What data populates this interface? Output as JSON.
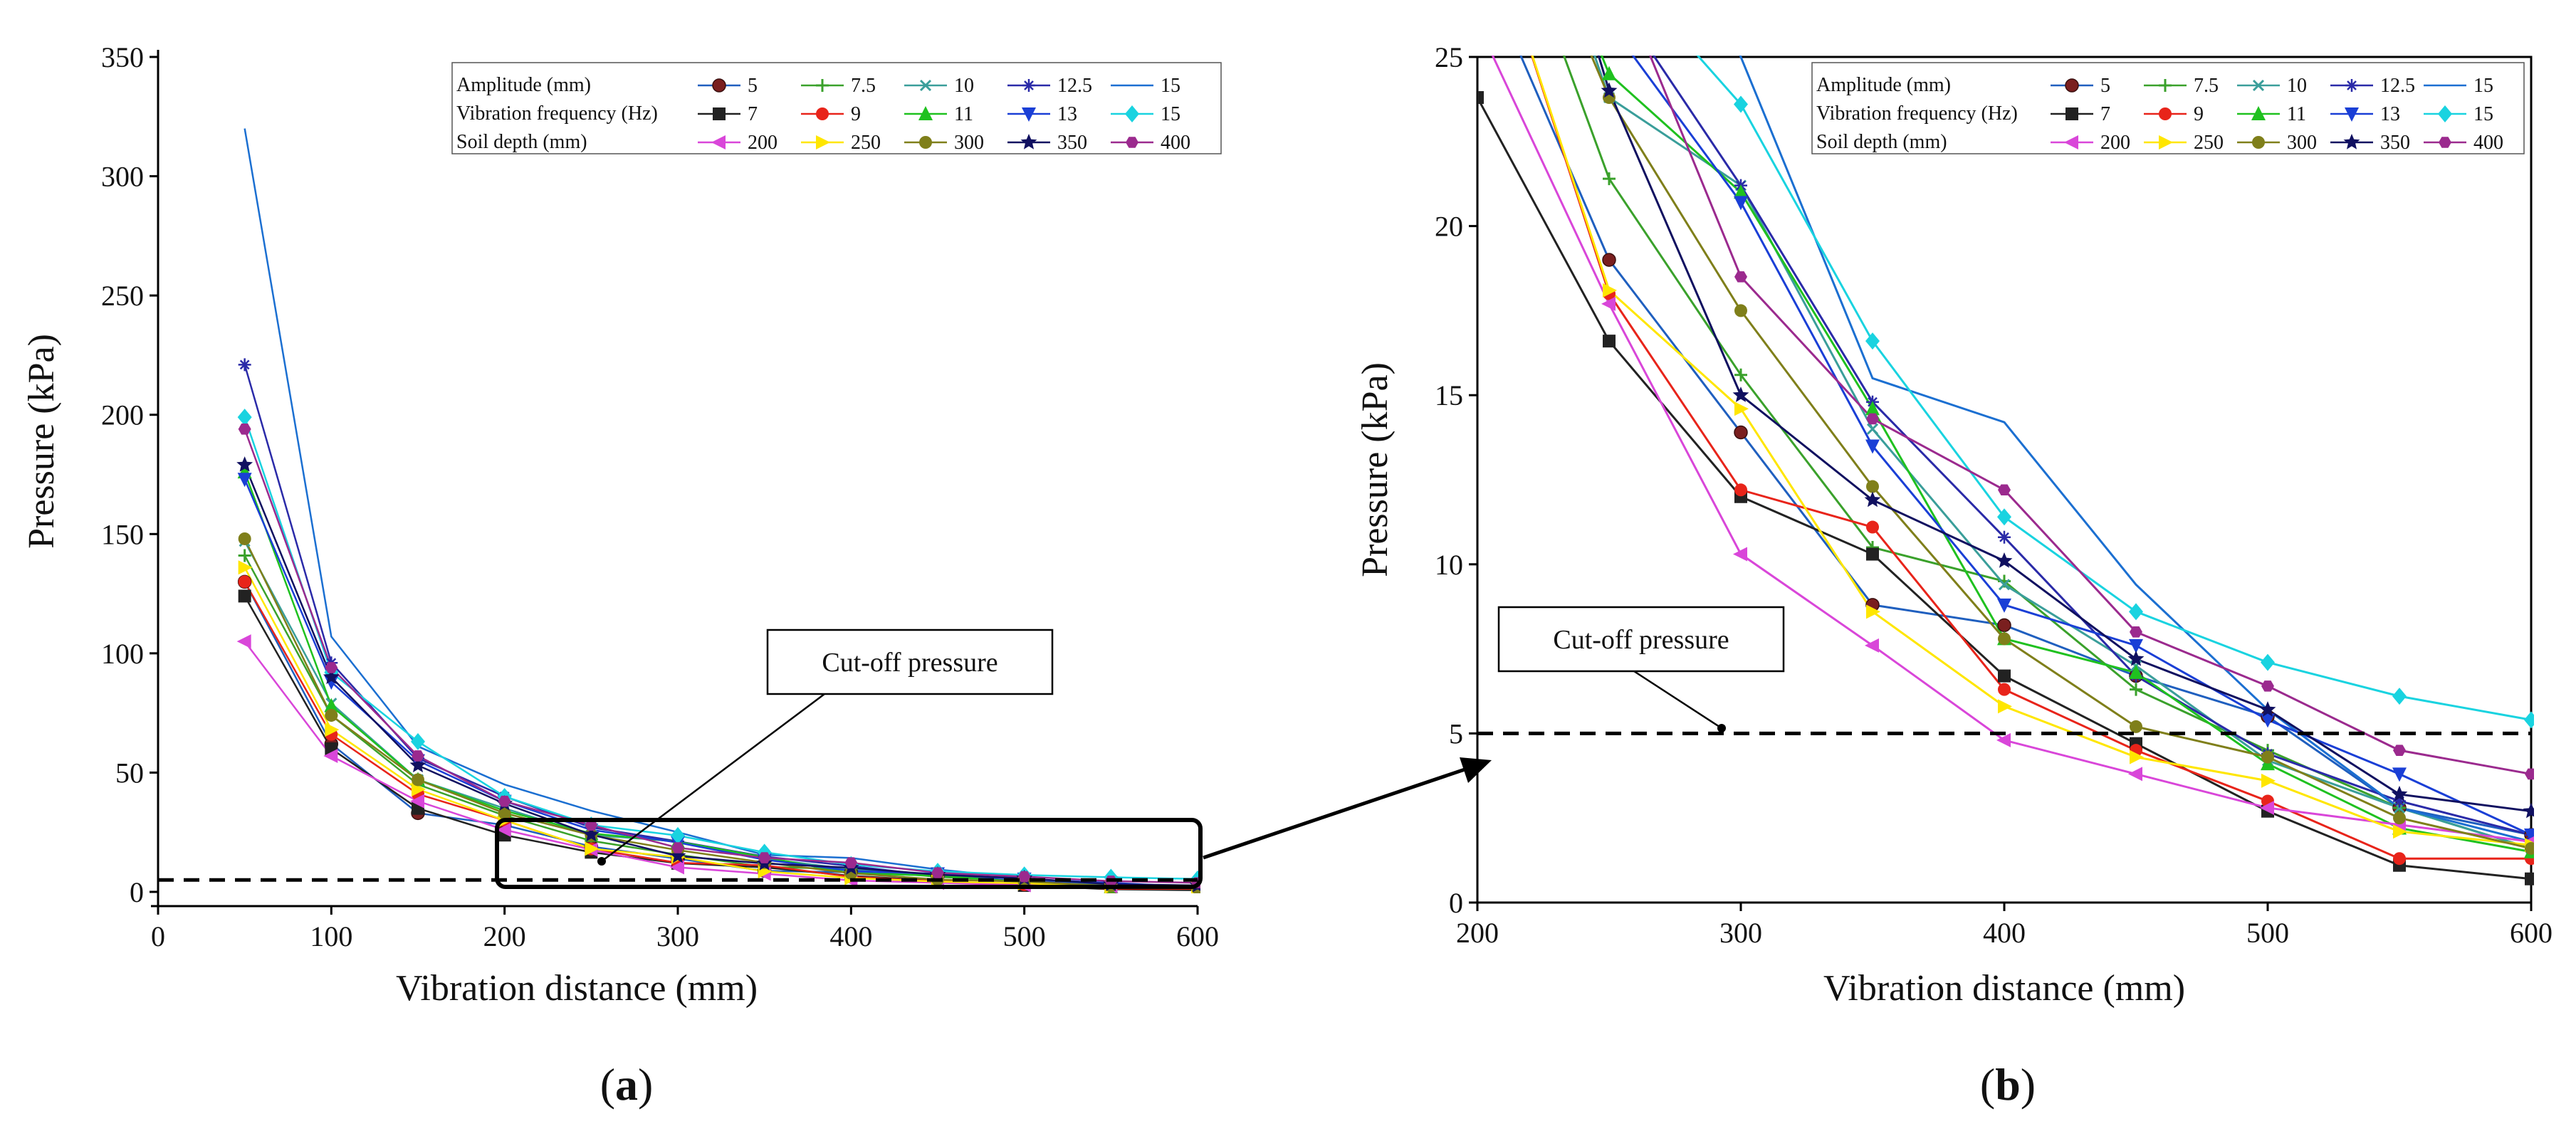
{
  "chart_data": [
    {
      "panel": "(a)",
      "panel_letter": "a",
      "type": "line",
      "xlabel": "Vibration distance (mm)",
      "ylabel": "Pressure (kPa)",
      "xlim": [
        0,
        600
      ],
      "ylim": [
        0,
        350
      ],
      "xticks": [
        0,
        100,
        200,
        300,
        400,
        500,
        600
      ],
      "yticks": [
        0,
        50,
        100,
        150,
        200,
        250,
        300,
        350
      ],
      "x": [
        50,
        100,
        150,
        200,
        250,
        300,
        350,
        400,
        450,
        500,
        550,
        600
      ],
      "cutoff_pressure": 5,
      "annotation": "Cut-off pressure"
    },
    {
      "panel": "(b)",
      "panel_letter": "b",
      "type": "line",
      "xlabel": "Vibration distance (mm)",
      "ylabel": "Pressure (kPa)",
      "xlim": [
        200,
        600
      ],
      "ylim": [
        0,
        25
      ],
      "xticks": [
        200,
        300,
        400,
        500,
        600
      ],
      "yticks": [
        0,
        5,
        10,
        15,
        20,
        25
      ],
      "x": [
        200,
        250,
        300,
        350,
        400,
        450,
        500,
        550,
        600
      ],
      "cutoff_pressure": 5,
      "annotation": "Cut-off pressure"
    }
  ],
  "legend": {
    "groups": [
      {
        "label": "Amplitude (mm)",
        "entries": [
          "5",
          "7.5",
          "10",
          "12.5",
          "15"
        ]
      },
      {
        "label": "Vibration frequency (Hz)",
        "entries": [
          "7",
          "9",
          "11",
          "13",
          "15"
        ]
      },
      {
        "label": "Soil depth (mm)",
        "entries": [
          "200",
          "250",
          "300",
          "350",
          "400"
        ]
      }
    ]
  },
  "series": [
    {
      "name": "Amplitude 5 mm",
      "color": "#1f5fbf",
      "marker": "circle-dot",
      "values": [
        130,
        62,
        33,
        28,
        19,
        13.9,
        8.8,
        8.2,
        6.7,
        5.5,
        2.8,
        2.0
      ]
    },
    {
      "name": "Amplitude 7.5 mm",
      "color": "#3aa12b",
      "marker": "plus",
      "values": [
        141,
        74,
        45,
        32,
        21.4,
        15.6,
        10.5,
        9.5,
        6.3,
        4.5,
        2.8,
        1.6
      ]
    },
    {
      "name": "Amplitude 10 mm",
      "color": "#3a9e9a",
      "marker": "x",
      "values": [
        147,
        79,
        47,
        35,
        23.8,
        21.2,
        14.0,
        9.4,
        7.0,
        4.2,
        2.8,
        1.6
      ]
    },
    {
      "name": "Amplitude 12.5 mm",
      "color": "#2a2aa8",
      "marker": "asterisk",
      "values": [
        221,
        96,
        56,
        40,
        27,
        21.2,
        14.8,
        10.8,
        6.7,
        4.4,
        3.0,
        2.0
      ]
    },
    {
      "name": "Amplitude 15 mm",
      "color": "#1b6fd1",
      "marker": "none",
      "values": [
        320,
        107,
        61,
        45,
        34,
        25,
        15.5,
        14.2,
        9.4,
        5.7,
        2.8,
        1.8
      ]
    },
    {
      "name": "Vibration frequency 7 Hz",
      "color": "#222222",
      "marker": "square",
      "values": [
        124,
        60,
        35,
        23.8,
        16.6,
        12.0,
        10.3,
        6.7,
        4.7,
        2.7,
        1.1,
        0.7
      ]
    },
    {
      "name": "Vibration frequency 9 Hz",
      "color": "#e8241a",
      "marker": "circle",
      "values": [
        130,
        66,
        41,
        30,
        18,
        12.2,
        11.1,
        6.3,
        4.5,
        3.0,
        1.3,
        1.3
      ]
    },
    {
      "name": "Vibration frequency 11 Hz",
      "color": "#1fc11f",
      "marker": "triangle",
      "values": [
        176,
        78,
        47,
        34,
        24.5,
        21.0,
        14.6,
        7.8,
        6.8,
        4.1,
        2.2,
        1.5
      ]
    },
    {
      "name": "Vibration frequency 13 Hz",
      "color": "#1a3fd6",
      "marker": "triangle-down",
      "values": [
        173,
        88,
        55,
        38,
        26,
        20.7,
        13.5,
        8.8,
        7.6,
        5.4,
        3.8,
        2.0
      ]
    },
    {
      "name": "Vibration frequency 15 Hz",
      "color": "#19d3e0",
      "marker": "diamond",
      "values": [
        199,
        92,
        63,
        40,
        28,
        23.6,
        16.6,
        11.4,
        8.6,
        7.1,
        6.1,
        5.4
      ]
    },
    {
      "name": "Soil depth 200 mm",
      "color": "#d946d9",
      "marker": "triangle-left",
      "values": [
        105,
        57,
        38,
        26,
        17.7,
        10.3,
        7.6,
        4.8,
        3.8,
        2.8,
        2.3,
        1.8
      ]
    },
    {
      "name": "Soil depth 250 mm",
      "color": "#ffe600",
      "marker": "triangle-right",
      "values": [
        136,
        68,
        43,
        30,
        18.1,
        14.6,
        8.6,
        5.8,
        4.3,
        3.6,
        2.1,
        1.7
      ]
    },
    {
      "name": "Soil depth 300 mm",
      "color": "#7f7f1a",
      "marker": "circle",
      "values": [
        148,
        74,
        47,
        33,
        23.8,
        17.5,
        12.3,
        7.8,
        5.2,
        4.3,
        2.5,
        1.6
      ]
    },
    {
      "name": "Soil depth 350 mm",
      "color": "#101060",
      "marker": "star",
      "values": [
        179,
        90,
        53,
        37,
        24,
        15.0,
        11.9,
        10.1,
        7.2,
        5.7,
        3.2,
        2.7
      ]
    },
    {
      "name": "Soil depth 400 mm",
      "color": "#9b2a8e",
      "marker": "hexagon",
      "values": [
        194,
        94,
        57,
        38,
        28,
        18.5,
        14.3,
        12.2,
        8.0,
        6.4,
        4.5,
        3.8
      ]
    }
  ]
}
